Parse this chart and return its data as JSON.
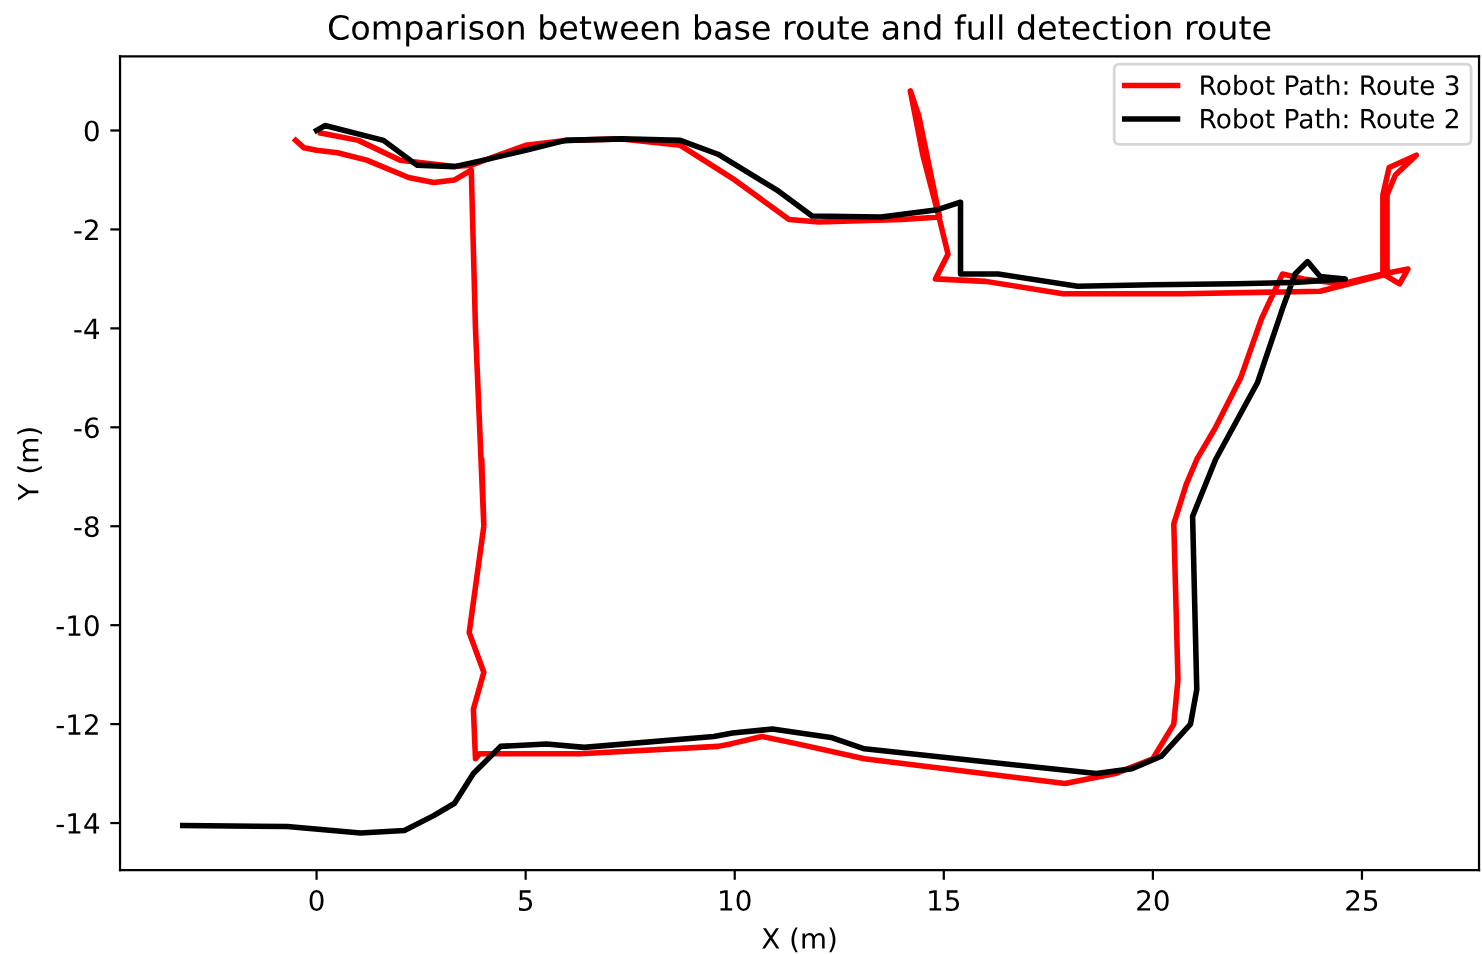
{
  "chart_data": {
    "type": "line",
    "title": "Comparison between base route and full detection route",
    "xlabel": "X (m)",
    "ylabel": "Y (m)",
    "xlim": [
      -4.7,
      27.8
    ],
    "ylim": [
      -14.95,
      1.5
    ],
    "xticks": [
      0,
      5,
      10,
      15,
      20,
      25
    ],
    "yticks": [
      -14,
      -12,
      -10,
      -8,
      -6,
      -4,
      -2,
      0
    ],
    "grid": false,
    "legend": "top right",
    "marker": "none",
    "line_style": "solid",
    "series": [
      {
        "name": "Robot Path: Route 3",
        "color": "#ff0000",
        "x": [
          -0.5,
          -0.3,
          0.0,
          0.5,
          1.2,
          2.2,
          2.8,
          3.3,
          3.7,
          3.8,
          3.9,
          4.0,
          3.95,
          4.0,
          3.65,
          4.0,
          3.75,
          3.8,
          3.9,
          6.3,
          9.6,
          9.9,
          10.65,
          11.5,
          13.1,
          15.95,
          17.9,
          19.1,
          20.0,
          20.5,
          20.6,
          20.5,
          20.8,
          21.05,
          21.5,
          22.1,
          22.6,
          23.1,
          23.6,
          24.5,
          25.5,
          26.1,
          25.9,
          25.5,
          25.5,
          25.65,
          26.3,
          25.8,
          25.6,
          25.6,
          24.0,
          20.7,
          17.85,
          16.0,
          14.8,
          15.1,
          14.9,
          14.5,
          14.2,
          14.4,
          14.9,
          14.0,
          12.0,
          11.3,
          10.0,
          8.7,
          7.3,
          6.0,
          5.0,
          4.5,
          3.7,
          3.3,
          2.0,
          1.0,
          0.1
        ],
        "values": [
          -0.2,
          -0.35,
          -0.4,
          -0.45,
          -0.6,
          -0.95,
          -1.05,
          -1.0,
          -0.8,
          -4.0,
          -6.0,
          -8.0,
          -6.65,
          -8.0,
          -10.15,
          -10.95,
          -11.7,
          -12.7,
          -12.6,
          -12.6,
          -12.45,
          -12.4,
          -12.25,
          -12.4,
          -12.7,
          -13.0,
          -13.2,
          -13.0,
          -12.7,
          -12.0,
          -11.1,
          -7.95,
          -7.15,
          -6.65,
          -6.0,
          -5.0,
          -3.8,
          -2.9,
          -3.0,
          -3.1,
          -2.9,
          -2.8,
          -3.1,
          -2.9,
          -1.3,
          -0.75,
          -0.5,
          -0.9,
          -1.3,
          -2.9,
          -3.25,
          -3.3,
          -3.3,
          -3.05,
          -3.0,
          -2.5,
          -1.8,
          -0.5,
          0.8,
          0.3,
          -1.75,
          -1.8,
          -1.85,
          -1.8,
          -1.0,
          -0.3,
          -0.17,
          -0.2,
          -0.3,
          -0.45,
          -0.7,
          -0.73,
          -0.6,
          -0.2,
          -0.05
        ]
      },
      {
        "name": "Robot Path: Route 2",
        "color": "#000000",
        "x": [
          -3.2,
          -0.7,
          1.05,
          2.1,
          2.8,
          3.3,
          3.75,
          4.4,
          5.5,
          6.4,
          9.5,
          9.95,
          10.9,
          12.3,
          13.1,
          18.65,
          19.5,
          20.2,
          20.9,
          21.05,
          20.95,
          21.5,
          22.5,
          23.1,
          23.4,
          23.7,
          24.0,
          24.6,
          23.4,
          22.0,
          20.0,
          18.2,
          16.3,
          15.4,
          15.4,
          14.85,
          13.5,
          11.85,
          11.0,
          9.6,
          8.7,
          7.3,
          5.95,
          5.0,
          4.0,
          3.3,
          2.4,
          1.6,
          0.2,
          0.0
        ],
        "values": [
          -14.05,
          -14.07,
          -14.2,
          -14.15,
          -13.85,
          -13.6,
          -13.0,
          -12.45,
          -12.4,
          -12.47,
          -12.25,
          -12.18,
          -12.1,
          -12.27,
          -12.5,
          -13.0,
          -12.9,
          -12.65,
          -12.0,
          -11.3,
          -7.8,
          -6.65,
          -5.1,
          -3.6,
          -2.9,
          -2.65,
          -2.95,
          -3.0,
          -3.07,
          -3.1,
          -3.12,
          -3.15,
          -2.9,
          -2.9,
          -1.45,
          -1.6,
          -1.75,
          -1.73,
          -1.2,
          -0.48,
          -0.2,
          -0.17,
          -0.2,
          -0.4,
          -0.6,
          -0.73,
          -0.7,
          -0.2,
          0.1,
          0.0
        ]
      }
    ]
  }
}
